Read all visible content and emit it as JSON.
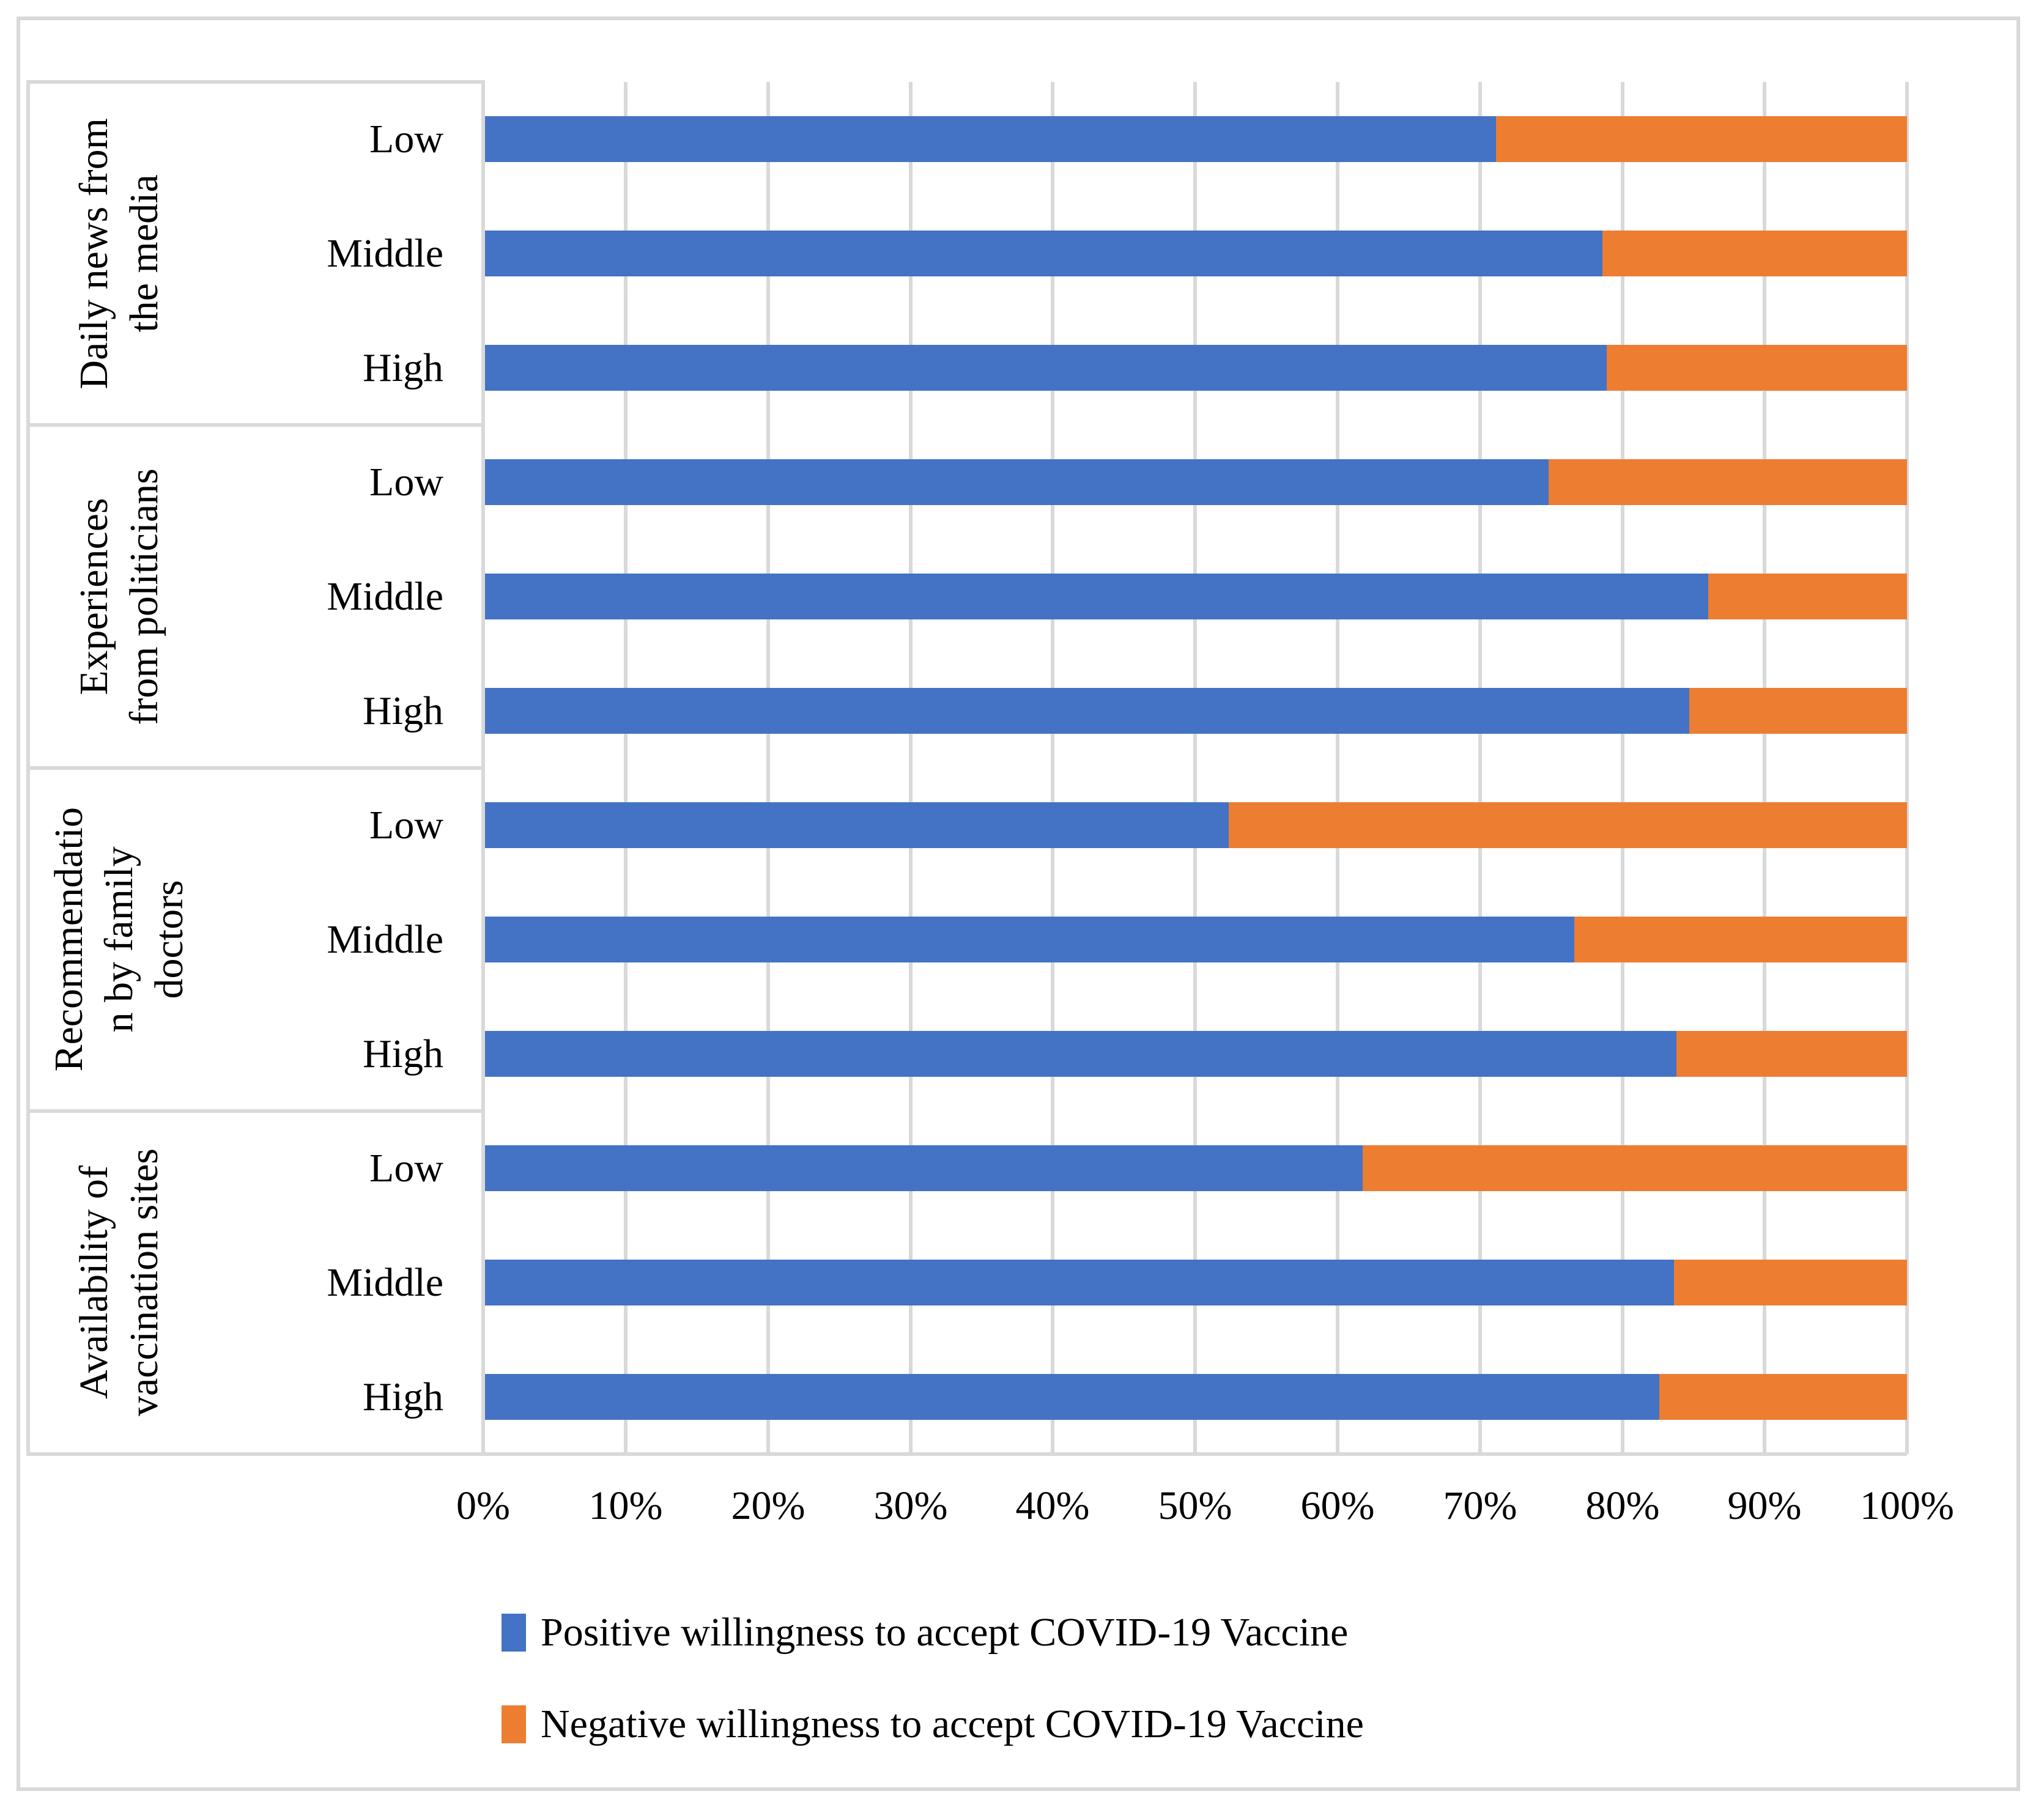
{
  "figure": {
    "background": "#ffffff",
    "border_color": "#d9d9d9",
    "gridline_color": "#d9d9d9"
  },
  "chart_data": {
    "type": "bar",
    "orientation": "horizontal",
    "stacked": true,
    "unit": "percent",
    "x_axis": {
      "min": 0,
      "max": 100,
      "grid": true,
      "tick_labels": [
        "0%",
        "10%",
        "20%",
        "30%",
        "40%",
        "50%",
        "60%",
        "70%",
        "80%",
        "90%",
        "100%"
      ]
    },
    "series_colors": {
      "positive": "#4472C4",
      "negative": "#ED7D31"
    },
    "legend": {
      "position": "bottom-left",
      "items": [
        {
          "label": "Positive willingness to accept COVID-19 Vaccine",
          "color": "#4472C4"
        },
        {
          "label": "Negative willingness to accept COVID-19 Vaccine",
          "color": "#ED7D31"
        }
      ]
    },
    "groups": [
      {
        "label": "Daily news from\nthe media",
        "rows": [
          {
            "level": "Low",
            "positive": 71.1,
            "negative": 28.9
          },
          {
            "level": "Middle",
            "positive": 78.6,
            "negative": 21.4
          },
          {
            "level": "High",
            "positive": 78.9,
            "negative": 21.1
          }
        ]
      },
      {
        "label": "Experiences\nfrom politicians",
        "rows": [
          {
            "level": "Low",
            "positive": 74.8,
            "negative": 25.2
          },
          {
            "level": "Middle",
            "positive": 86.0,
            "negative": 14.0
          },
          {
            "level": "High",
            "positive": 84.7,
            "negative": 15.3
          }
        ]
      },
      {
        "label": "Recommendatio\nn by family\ndoctors",
        "rows": [
          {
            "level": "Low",
            "positive": 52.3,
            "negative": 47.7
          },
          {
            "level": "Middle",
            "positive": 76.6,
            "negative": 23.4
          },
          {
            "level": "High",
            "positive": 83.8,
            "negative": 16.2
          }
        ]
      },
      {
        "label": "Availability of\nvaccination sites",
        "rows": [
          {
            "level": "Low",
            "positive": 61.7,
            "negative": 38.3
          },
          {
            "level": "Middle",
            "positive": 83.6,
            "negative": 16.4
          },
          {
            "level": "High",
            "positive": 82.6,
            "negative": 17.4
          }
        ]
      }
    ]
  }
}
